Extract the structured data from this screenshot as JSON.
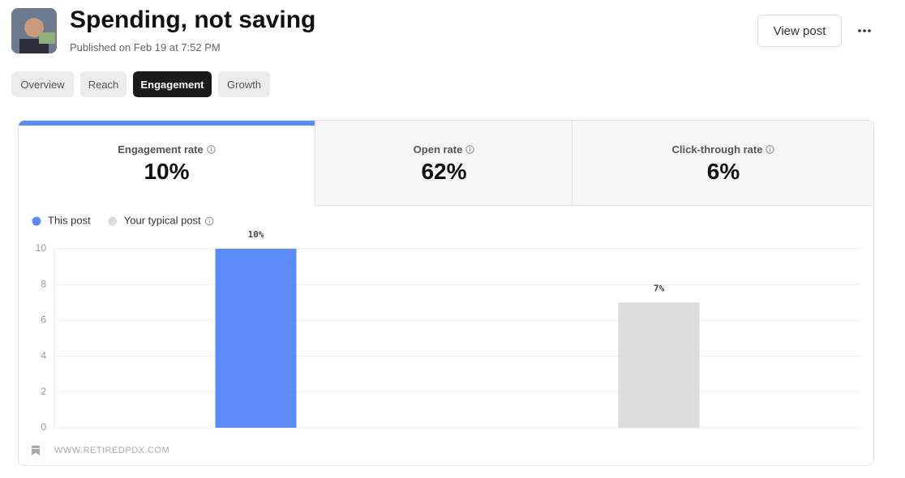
{
  "header": {
    "title": "Spending, not saving",
    "subtitle": "Published on Feb 19 at 7:52 PM",
    "button": "View post"
  },
  "tabs": {
    "items": [
      "Overview",
      "Reach",
      "Engagement",
      "Growth"
    ],
    "selected": 2
  },
  "metrics": [
    {
      "label": "Engagement rate",
      "value": "10%"
    },
    {
      "label": "Open rate",
      "value": "62%"
    },
    {
      "label": "Click-through rate",
      "value": "6%"
    }
  ],
  "chart_data": {
    "type": "bar",
    "categories": [
      "This post",
      "Your typical post"
    ],
    "values": [
      10,
      7
    ],
    "value_labels": [
      "10%",
      "7%"
    ],
    "colors": [
      "#5b8cf5",
      "#dcdcdc"
    ],
    "ylim": [
      0,
      10
    ],
    "yticks": [
      0,
      2,
      4,
      6,
      8,
      10
    ],
    "grid": true
  },
  "footer": {
    "source": "WWW.RETIREDPDX.COM"
  }
}
